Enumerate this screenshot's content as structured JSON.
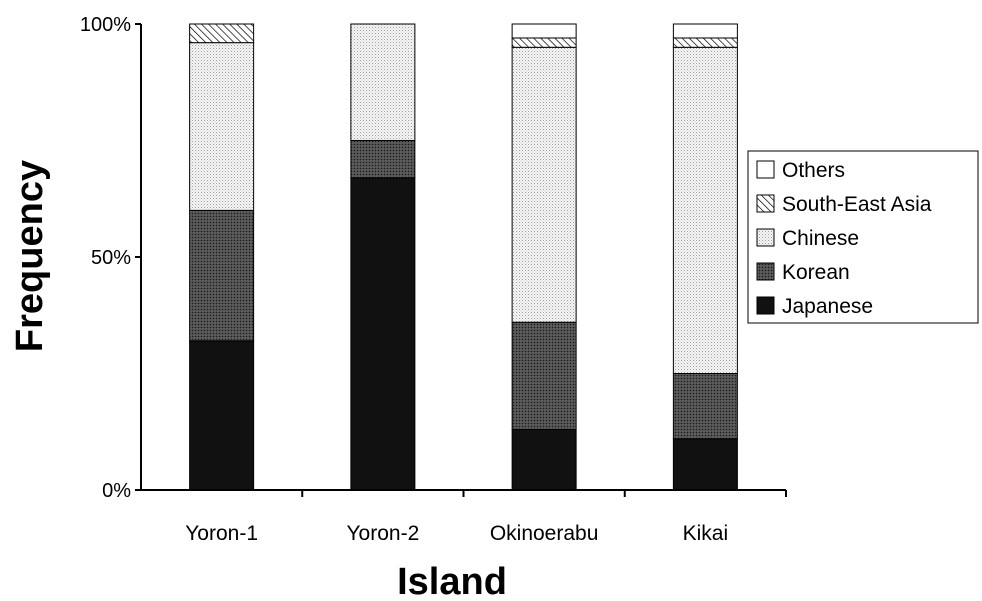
{
  "chart_data": {
    "type": "bar",
    "stacked": true,
    "categories": [
      "Yoron-1",
      "Yoron-2",
      "Okinoerabu",
      "Kikai"
    ],
    "series": [
      {
        "name": "Japanese",
        "values": [
          32,
          67,
          13,
          11
        ],
        "pattern": "solid-black"
      },
      {
        "name": "Korean",
        "values": [
          28,
          8,
          23,
          14
        ],
        "pattern": "dark-dots"
      },
      {
        "name": "Chinese",
        "values": [
          36,
          25,
          59,
          70
        ],
        "pattern": "light-dots"
      },
      {
        "name": "South-East Asia",
        "values": [
          4,
          0,
          2,
          2
        ],
        "pattern": "diagonal-hatch"
      },
      {
        "name": "Others",
        "values": [
          0,
          0,
          3,
          3
        ],
        "pattern": "white"
      }
    ],
    "xlabel": "Island",
    "ylabel": "Frequency",
    "yticks": [
      "0%",
      "50%",
      "100%"
    ],
    "ylim": [
      0,
      100
    ],
    "legend_position": "right",
    "grid": false
  }
}
